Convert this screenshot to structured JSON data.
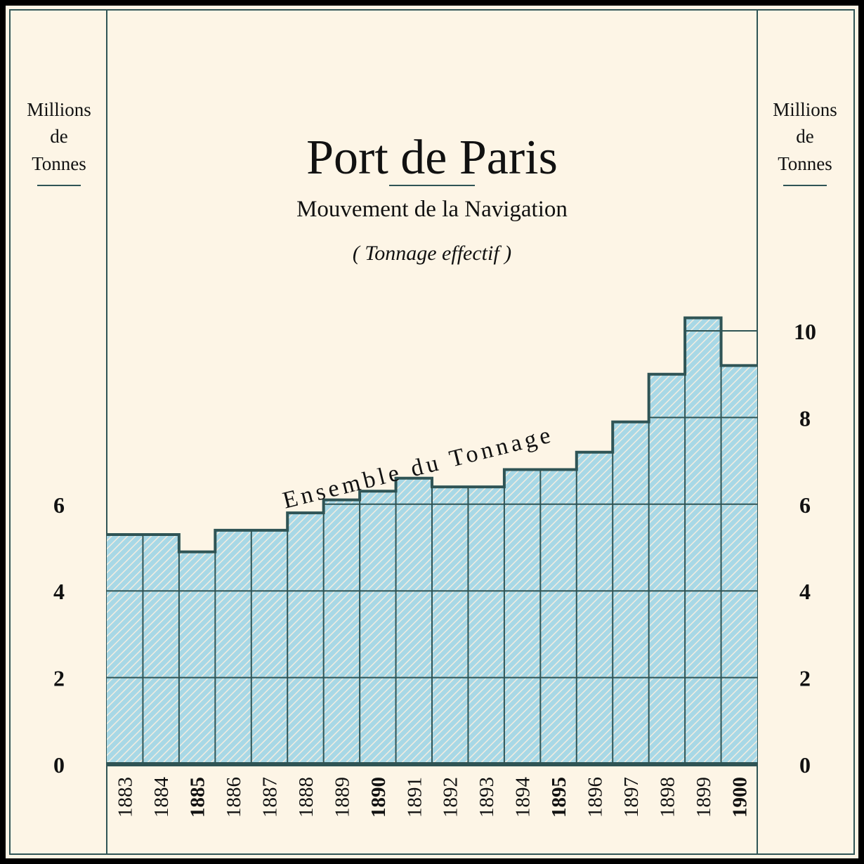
{
  "chart_data": {
    "type": "bar",
    "title": "Port de Paris",
    "subtitle": "Mouvement de la Navigation",
    "note": "( Tonnage effectif )",
    "series_label": "Ensemble du Tonnage",
    "y_unit_left": [
      "Millions",
      "de",
      "Tonnes"
    ],
    "y_unit_right": [
      "Millions",
      "de",
      "Tonnes"
    ],
    "left_ticks": [
      "0",
      "2",
      "4",
      "6"
    ],
    "right_ticks": [
      "0",
      "2",
      "4",
      "6",
      "8",
      "10"
    ],
    "ylim": [
      0,
      10.5
    ],
    "grid": true,
    "bold_years": [
      "1885",
      "1890",
      "1895",
      "1900"
    ],
    "categories": [
      "1883",
      "1884",
      "1885",
      "1886",
      "1887",
      "1888",
      "1889",
      "1890",
      "1891",
      "1892",
      "1893",
      "1894",
      "1895",
      "1896",
      "1897",
      "1898",
      "1899",
      "1900"
    ],
    "values": [
      5.3,
      5.3,
      4.9,
      5.4,
      5.4,
      5.8,
      6.1,
      6.3,
      6.6,
      6.4,
      6.4,
      6.8,
      6.8,
      7.2,
      7.9,
      9.0,
      10.3,
      9.2
    ],
    "colors": {
      "fill": "#a8d8e6",
      "hatch": "#f2ece0",
      "line": "#2f5455",
      "background": "#fdf5e6"
    }
  }
}
